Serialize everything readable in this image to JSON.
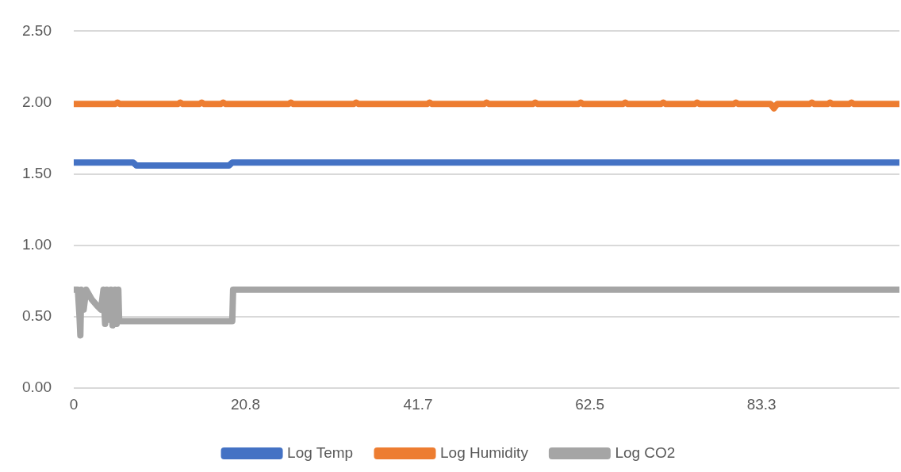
{
  "chart_data": {
    "type": "line",
    "xlim": [
      0,
      100
    ],
    "xticks": [
      0,
      20.8,
      41.7,
      62.5,
      83.3
    ],
    "ylim": [
      0,
      2.5
    ],
    "yticks": [
      {
        "value": 0,
        "label": "0.00"
      },
      {
        "value": 0.5,
        "label": "0.50"
      },
      {
        "value": 1,
        "label": "1.00"
      },
      {
        "value": 1.5,
        "label": "1.50"
      },
      {
        "value": 2,
        "label": "2.00"
      },
      {
        "value": 2.5,
        "label": "2.50"
      }
    ],
    "grid": "y",
    "legend": "bottom",
    "marker": "none",
    "line_style": "solid",
    "series": [
      {
        "name": "Log Temp",
        "color": "#4472c4",
        "x": [
          0,
          7.2,
          7.6,
          18.8,
          19.2,
          100
        ],
        "values": [
          1.58,
          1.58,
          1.56,
          1.56,
          1.58,
          1.58
        ]
      },
      {
        "name": "Log Humidity",
        "color": "#ed7d31",
        "x": [
          0,
          5.0,
          5.3,
          5.6,
          12.6,
          12.9,
          13.2,
          15.2,
          15.5,
          15.8,
          17.8,
          18.1,
          18.4,
          26.0,
          26.3,
          26.6,
          33.9,
          34.2,
          34.5,
          42.8,
          43.1,
          43.4,
          49.7,
          50.0,
          50.3,
          55.6,
          55.9,
          56.2,
          61.1,
          61.4,
          61.7,
          66.5,
          66.8,
          67.1,
          71.1,
          71.4,
          71.7,
          75.2,
          75.5,
          75.8,
          79.9,
          80.2,
          80.5,
          84.4,
          84.8,
          85.2,
          89.1,
          89.4,
          89.7,
          91.3,
          91.6,
          91.9,
          93.9,
          94.2,
          94.5,
          100
        ],
        "values": [
          1.99,
          1.99,
          2.0,
          1.99,
          1.99,
          2.0,
          1.99,
          1.99,
          2.0,
          1.99,
          1.99,
          2.0,
          1.99,
          1.99,
          2.0,
          1.99,
          1.99,
          2.0,
          1.99,
          1.99,
          2.0,
          1.99,
          1.99,
          2.0,
          1.99,
          1.99,
          2.0,
          1.99,
          1.99,
          2.0,
          1.99,
          1.99,
          2.0,
          1.99,
          1.99,
          2.0,
          1.99,
          1.99,
          2.0,
          1.99,
          1.99,
          2.0,
          1.99,
          1.99,
          1.96,
          1.99,
          1.99,
          2.0,
          1.99,
          1.99,
          2.0,
          1.99,
          1.99,
          2.0,
          1.99,
          1.99
        ]
      },
      {
        "name": "Log CO2",
        "color": "#a5a5a5",
        "x": [
          0,
          0.5,
          0.7,
          0.8,
          0.9,
          1.2,
          1.5,
          2.2,
          2.8,
          3.3,
          3.6,
          3.8,
          4.0,
          4.2,
          4.5,
          4.7,
          5.0,
          5.2,
          5.4,
          5.5,
          19.2,
          19.3,
          100
        ],
        "values": [
          0.69,
          0.69,
          0.5,
          0.37,
          0.69,
          0.55,
          0.69,
          0.62,
          0.58,
          0.55,
          0.69,
          0.45,
          0.69,
          0.48,
          0.69,
          0.44,
          0.69,
          0.45,
          0.69,
          0.47,
          0.47,
          0.69,
          0.69
        ]
      }
    ]
  }
}
